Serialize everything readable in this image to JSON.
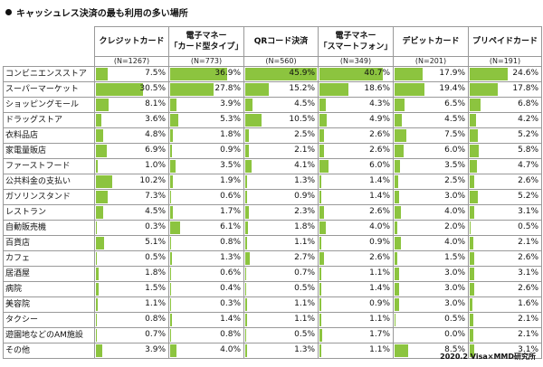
{
  "title": "キャッシュレス決済の最も利用の多い場所",
  "footer": "2020.2 Visa×MMD研究所",
  "chart_data": {
    "type": "table",
    "title": "キャッシュレス決済の最も利用の多い場所",
    "bar_color": "#8cc43f",
    "columns": [
      {
        "line1": "クレジットカード",
        "line2": "",
        "n": "(N=1267)"
      },
      {
        "line1": "電子マネー",
        "line2": "「カード型タイプ」",
        "n": "(N=773)"
      },
      {
        "line1": "QRコード決済",
        "line2": "",
        "n": "(N=560)"
      },
      {
        "line1": "電子マネー",
        "line2": "「スマートフォン」",
        "n": "(N=349)"
      },
      {
        "line1": "デビットカード",
        "line2": "",
        "n": "(N=201)"
      },
      {
        "line1": "プリペイドカード",
        "line2": "",
        "n": "(N=191)"
      }
    ],
    "rows": [
      {
        "label": "コンビニエンスストア",
        "values": [
          7.5,
          36.9,
          45.9,
          40.7,
          17.9,
          24.6
        ]
      },
      {
        "label": "スーパーマーケット",
        "values": [
          30.5,
          27.8,
          15.2,
          18.6,
          19.4,
          17.8
        ]
      },
      {
        "label": "ショッピングモール",
        "values": [
          8.1,
          3.9,
          4.5,
          4.3,
          6.5,
          6.8
        ]
      },
      {
        "label": "ドラッグストア",
        "values": [
          3.6,
          5.3,
          10.5,
          4.9,
          4.5,
          4.2
        ]
      },
      {
        "label": "衣料品店",
        "values": [
          4.8,
          1.8,
          2.5,
          2.6,
          7.5,
          5.2
        ]
      },
      {
        "label": "家電量販店",
        "values": [
          6.9,
          0.9,
          2.1,
          2.6,
          6.0,
          5.8
        ]
      },
      {
        "label": "ファーストフード",
        "values": [
          1.0,
          3.5,
          4.1,
          6.0,
          3.5,
          4.7
        ]
      },
      {
        "label": "公共料金の支払い",
        "values": [
          10.2,
          1.9,
          1.3,
          1.4,
          2.5,
          2.6
        ]
      },
      {
        "label": "ガソリンスタンド",
        "values": [
          7.3,
          0.6,
          0.9,
          1.4,
          3.0,
          5.2
        ]
      },
      {
        "label": "レストラン",
        "values": [
          4.5,
          1.7,
          2.3,
          2.6,
          4.0,
          3.1
        ]
      },
      {
        "label": "自動販売機",
        "values": [
          0.3,
          6.1,
          1.8,
          4.0,
          2.0,
          0.5
        ]
      },
      {
        "label": "百貨店",
        "values": [
          5.1,
          0.8,
          1.1,
          0.9,
          4.0,
          2.1
        ]
      },
      {
        "label": "カフェ",
        "values": [
          0.5,
          1.3,
          2.7,
          2.6,
          1.5,
          2.6
        ]
      },
      {
        "label": "居酒屋",
        "values": [
          1.8,
          0.6,
          0.7,
          1.1,
          3.0,
          3.1
        ]
      },
      {
        "label": "病院",
        "values": [
          1.5,
          0.4,
          0.5,
          1.4,
          3.0,
          2.6
        ]
      },
      {
        "label": "美容院",
        "values": [
          1.1,
          0.3,
          1.1,
          0.9,
          3.0,
          1.6
        ]
      },
      {
        "label": "タクシー",
        "values": [
          0.8,
          1.4,
          1.1,
          1.1,
          0.5,
          2.1
        ]
      },
      {
        "label": "遊園地などのAM施設",
        "values": [
          0.7,
          0.8,
          0.5,
          1.7,
          0.0,
          2.1
        ]
      },
      {
        "label": "その他",
        "values": [
          3.9,
          4.0,
          1.3,
          1.1,
          8.5,
          3.1
        ]
      }
    ]
  }
}
